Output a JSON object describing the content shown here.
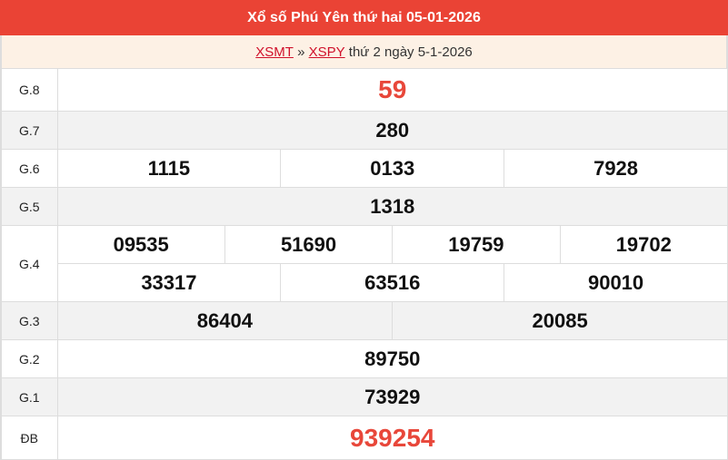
{
  "header": {
    "title": "Xổ số Phú Yên thứ hai 05-01-2026"
  },
  "breadcrumb": {
    "link1": "XSMT",
    "sep": "»",
    "link2": "XSPY",
    "text": "thứ 2 ngày 5-1-2026"
  },
  "colors": {
    "header_bg": "#ea4335",
    "special_number": "#e8473a"
  },
  "prizes": {
    "g8": {
      "label": "G.8",
      "values": [
        "59"
      ]
    },
    "g7": {
      "label": "G.7",
      "values": [
        "280"
      ]
    },
    "g6": {
      "label": "G.6",
      "values": [
        "1115",
        "0133",
        "7928"
      ]
    },
    "g5": {
      "label": "G.5",
      "values": [
        "1318"
      ]
    },
    "g4": {
      "label": "G.4",
      "values": [
        "09535",
        "51690",
        "19759",
        "19702",
        "33317",
        "63516",
        "90010"
      ]
    },
    "g3": {
      "label": "G.3",
      "values": [
        "86404",
        "20085"
      ]
    },
    "g2": {
      "label": "G.2",
      "values": [
        "89750"
      ]
    },
    "g1": {
      "label": "G.1",
      "values": [
        "73929"
      ]
    },
    "db": {
      "label": "ĐB",
      "values": [
        "939254"
      ]
    }
  }
}
